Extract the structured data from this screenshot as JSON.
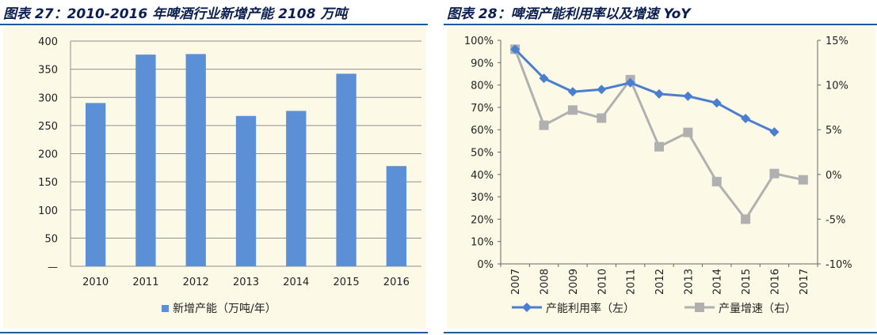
{
  "left": {
    "title": "图表 27：2010-2016 年啤酒行业新增产能 2108 万吨"
  },
  "right": {
    "title": "图表 28：啤酒产能利用率以及增速 YoY"
  },
  "chart_data": [
    {
      "type": "bar",
      "categories": [
        "2010",
        "2011",
        "2012",
        "2013",
        "2014",
        "2015",
        "2016"
      ],
      "series": [
        {
          "name": "新增产能（万吨/年）",
          "values": [
            290,
            376,
            377,
            267,
            276,
            342,
            178
          ],
          "color": "#5b8fd6"
        }
      ],
      "ylim": [
        0,
        400
      ],
      "yticks": [
        "—",
        "50",
        "100",
        "150",
        "200",
        "250",
        "300",
        "350",
        "400"
      ],
      "ytick_values": [
        0,
        50,
        100,
        150,
        200,
        250,
        300,
        350,
        400
      ],
      "grid": true,
      "legend": "bottom"
    },
    {
      "type": "line",
      "categories": [
        "2007",
        "2008",
        "2009",
        "2010",
        "2011",
        "2012",
        "2013",
        "2014",
        "2015",
        "2016",
        "2017"
      ],
      "series": [
        {
          "name": "产能利用率（左）",
          "axis": "left",
          "values": [
            96,
            83,
            77,
            78,
            81,
            76,
            75,
            72,
            65,
            59,
            null
          ],
          "color": "#4a7fd0",
          "marker": "diamond"
        },
        {
          "name": "产量增速（右）",
          "axis": "right",
          "values": [
            14,
            5.5,
            7.2,
            6.3,
            10.6,
            3.1,
            4.7,
            -0.8,
            -5,
            0.1,
            -0.6
          ],
          "color": "#b0b0b0",
          "marker": "square"
        }
      ],
      "ylim_left": [
        0,
        100
      ],
      "ylim_right": [
        -10,
        15
      ],
      "yticks_left": [
        "0%",
        "10%",
        "20%",
        "30%",
        "40%",
        "50%",
        "60%",
        "70%",
        "80%",
        "90%",
        "100%"
      ],
      "ytick_left_values": [
        0,
        10,
        20,
        30,
        40,
        50,
        60,
        70,
        80,
        90,
        100
      ],
      "yticks_right": [
        "-10%",
        "-5%",
        "0%",
        "5%",
        "10%",
        "15%"
      ],
      "ytick_right_values": [
        -10,
        -5,
        0,
        5,
        10,
        15
      ],
      "grid": false,
      "legend": "bottom"
    }
  ]
}
